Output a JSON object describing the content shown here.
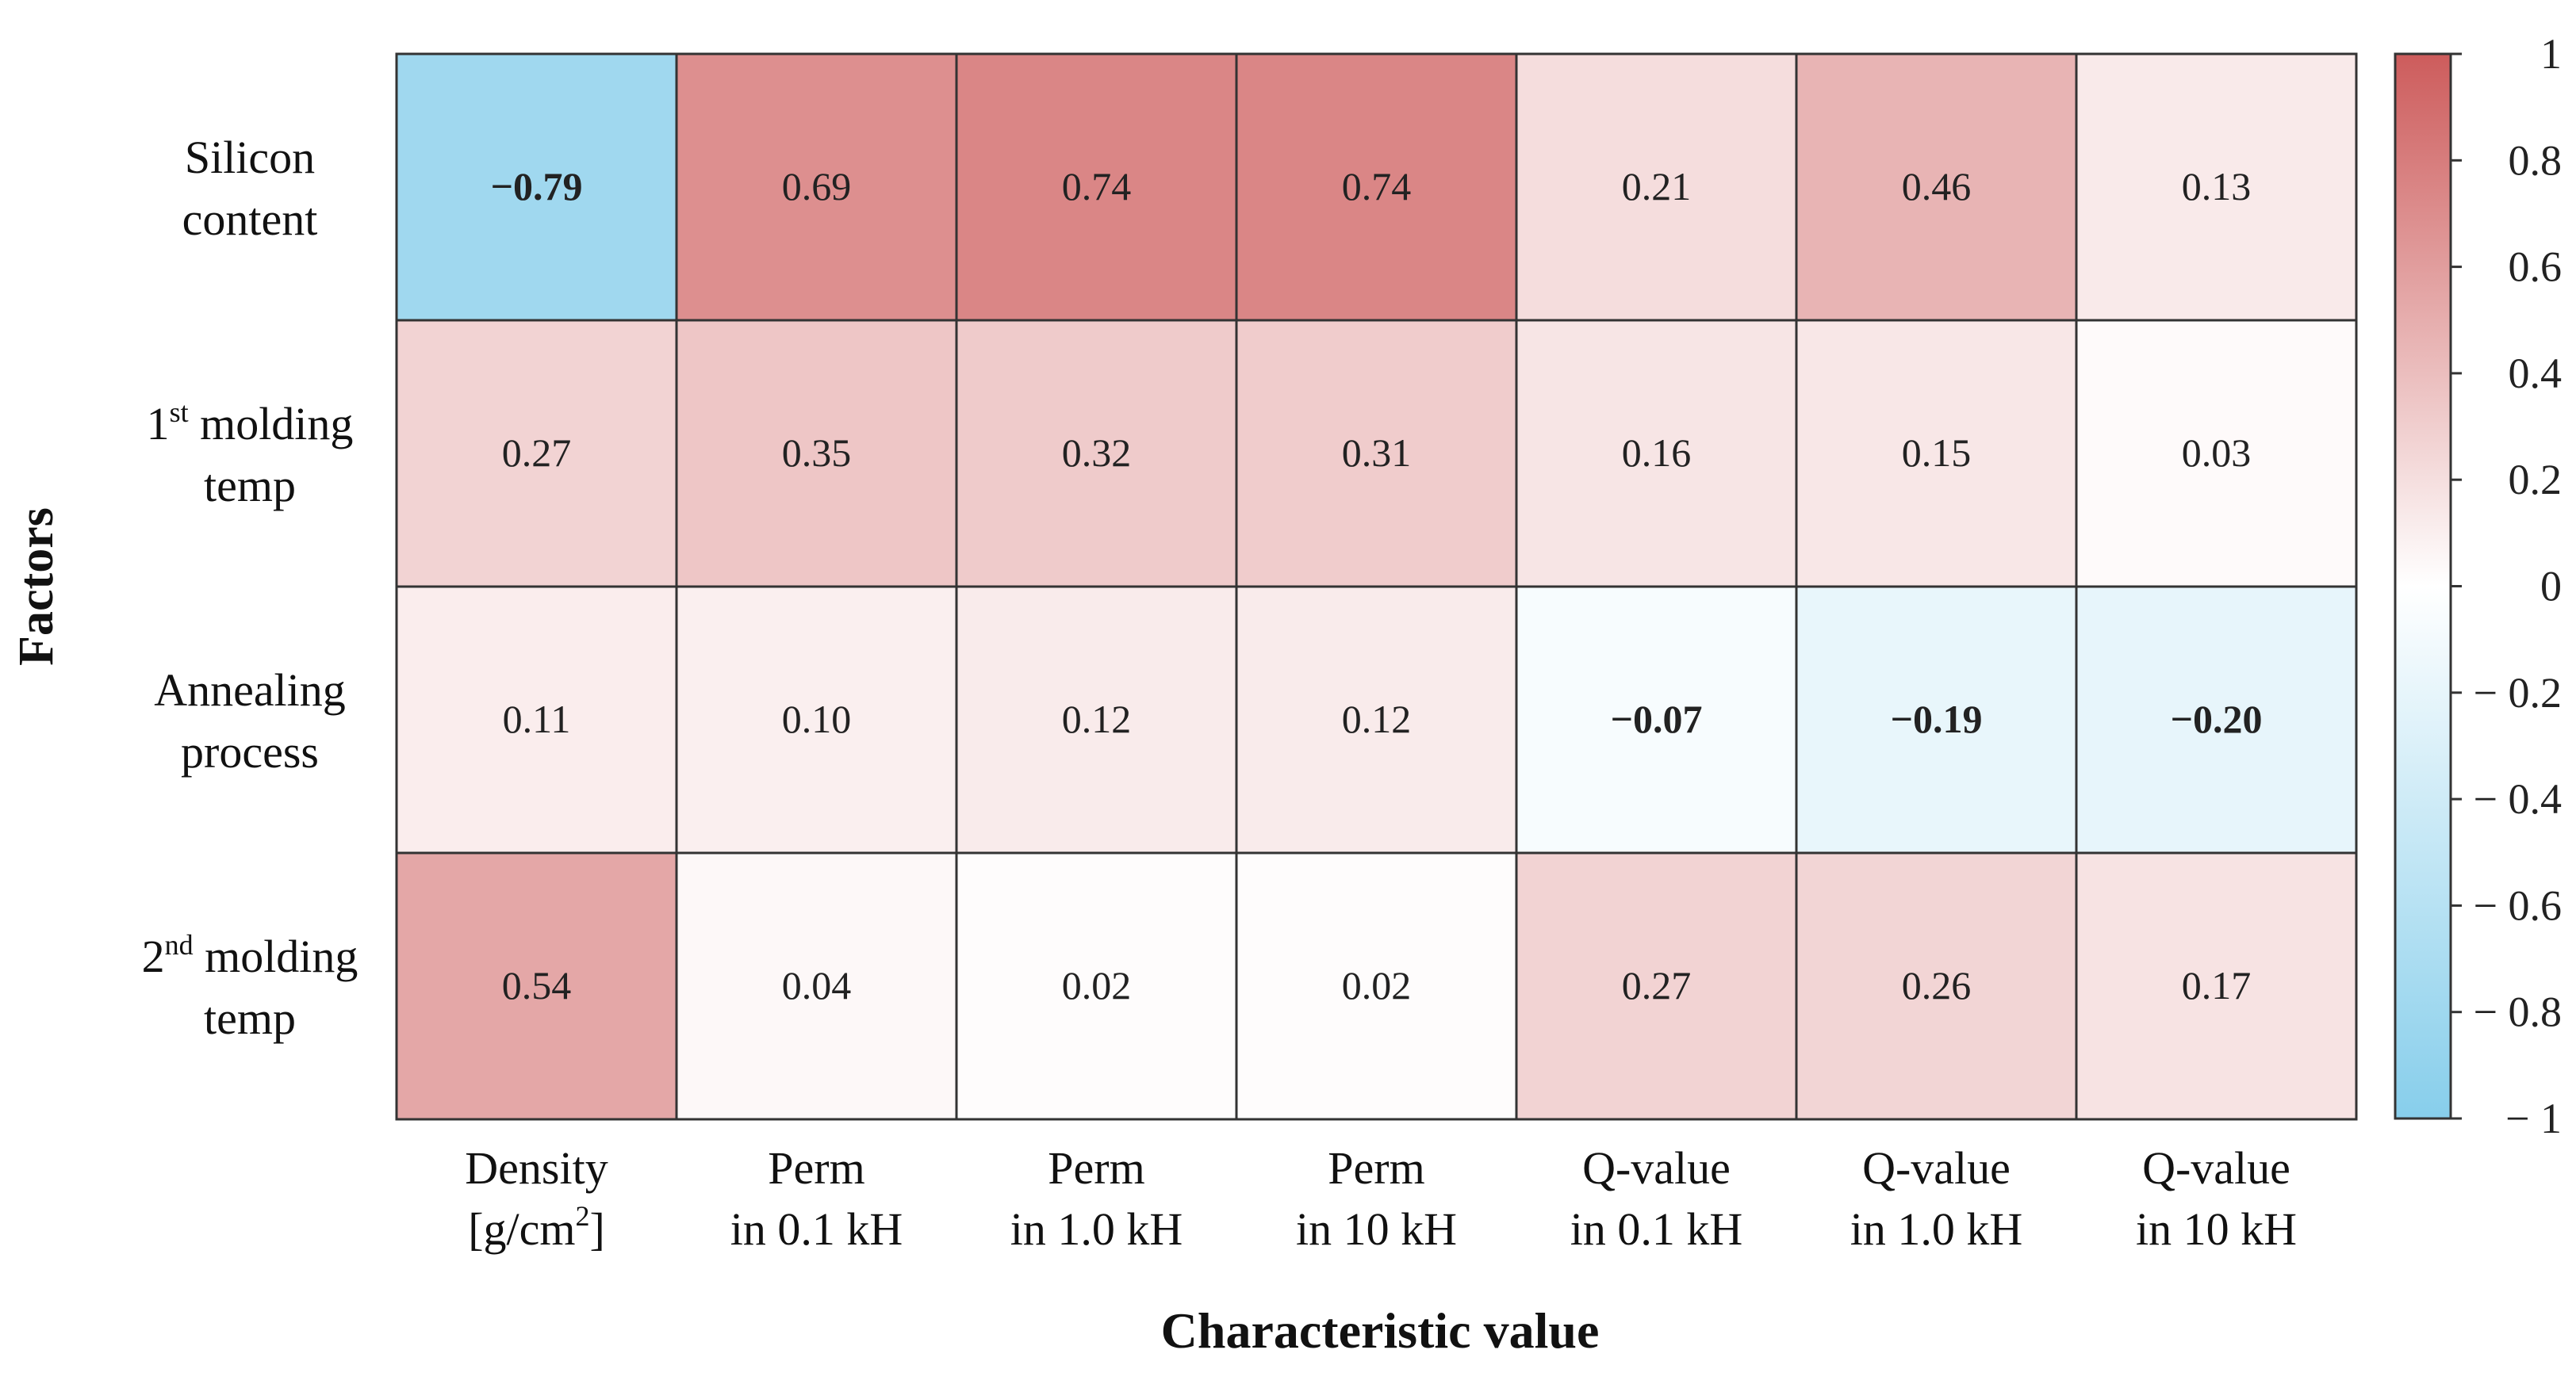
{
  "chart_data": {
    "type": "heatmap",
    "title": "",
    "xlabel": "Characteristic value",
    "ylabel": "Factors",
    "rows": [
      {
        "line1": "Silicon",
        "line2": "content",
        "ordinal": "",
        "sup": ""
      },
      {
        "line1": "molding",
        "line2": "temp",
        "ordinal": "1",
        "sup": "st"
      },
      {
        "line1": "Annealing",
        "line2": "process",
        "ordinal": "",
        "sup": ""
      },
      {
        "line1": "molding",
        "line2": "temp",
        "ordinal": "2",
        "sup": "nd"
      }
    ],
    "columns": [
      {
        "line1": "Density",
        "line2": "[g/cm",
        "line2_sup": "2",
        "line2_end": "]"
      },
      {
        "line1": "Perm",
        "line2": "in 0.1 kH",
        "line2_sup": "",
        "line2_end": ""
      },
      {
        "line1": "Perm",
        "line2": "in 1.0 kH",
        "line2_sup": "",
        "line2_end": ""
      },
      {
        "line1": "Perm",
        "line2": "in 10 kH",
        "line2_sup": "",
        "line2_end": ""
      },
      {
        "line1": "Q-value",
        "line2": "in 0.1 kH",
        "line2_sup": "",
        "line2_end": ""
      },
      {
        "line1": "Q-value",
        "line2": "in 1.0 kH",
        "line2_sup": "",
        "line2_end": ""
      },
      {
        "line1": "Q-value",
        "line2": "in 10 kH",
        "line2_sup": "",
        "line2_end": ""
      }
    ],
    "values": [
      [
        -0.79,
        0.69,
        0.74,
        0.74,
        0.21,
        0.46,
        0.13
      ],
      [
        0.27,
        0.35,
        0.32,
        0.31,
        0.16,
        0.15,
        0.03
      ],
      [
        0.11,
        0.1,
        0.12,
        0.12,
        -0.07,
        -0.19,
        -0.2
      ],
      [
        0.54,
        0.04,
        0.02,
        0.02,
        0.27,
        0.26,
        0.17
      ]
    ],
    "labels": [
      [
        "−0.79",
        "0.69",
        "0.74",
        "0.74",
        "0.21",
        "0.46",
        "0.13"
      ],
      [
        "0.27",
        "0.35",
        "0.32",
        "0.31",
        "0.16",
        "0.15",
        "0.03"
      ],
      [
        "0.11",
        "0.10",
        "0.12",
        "0.12",
        "−0.07",
        "−0.19",
        "−0.20"
      ],
      [
        "0.54",
        "0.04",
        "0.02",
        "0.02",
        "0.27",
        "0.26",
        "0.17"
      ]
    ],
    "colorbar": {
      "range": [
        -1,
        1
      ],
      "ticks": [
        "1",
        "0.8",
        "0.6",
        "0.4",
        "0.2",
        "0",
        "− 0.2",
        "− 0.4",
        "− 0.6",
        "− 0.8",
        "− 1"
      ],
      "tick_values": [
        1,
        0.8,
        0.6,
        0.4,
        0.2,
        0,
        -0.2,
        -0.4,
        -0.6,
        -0.8,
        -1
      ],
      "positive_color": "#cd5c5c",
      "neutral_color": "#ffffff",
      "negative_color": "#87ceeb"
    }
  }
}
